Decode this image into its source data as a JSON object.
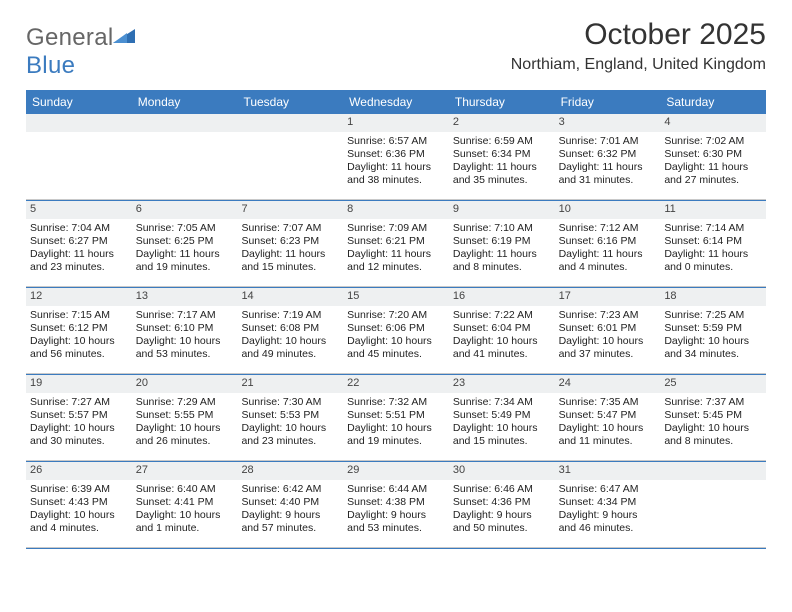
{
  "logo": {
    "word1": "General",
    "word2": "Blue"
  },
  "title": "October 2025",
  "location": "Northiam, England, United Kingdom",
  "colors": {
    "header_bg": "#3b7bbf",
    "header_text": "#ffffff",
    "daynum_bg": "#eef0f1",
    "week_divider": "#3b7bbf",
    "cell_divider": "#c9c9c9",
    "body_text": "#222222"
  },
  "dow": [
    "Sunday",
    "Monday",
    "Tuesday",
    "Wednesday",
    "Thursday",
    "Friday",
    "Saturday"
  ],
  "weeks": [
    [
      null,
      null,
      null,
      {
        "n": "1",
        "sr": "6:57 AM",
        "ss": "6:36 PM",
        "dl": "11 hours and 38 minutes."
      },
      {
        "n": "2",
        "sr": "6:59 AM",
        "ss": "6:34 PM",
        "dl": "11 hours and 35 minutes."
      },
      {
        "n": "3",
        "sr": "7:01 AM",
        "ss": "6:32 PM",
        "dl": "11 hours and 31 minutes."
      },
      {
        "n": "4",
        "sr": "7:02 AM",
        "ss": "6:30 PM",
        "dl": "11 hours and 27 minutes."
      }
    ],
    [
      {
        "n": "5",
        "sr": "7:04 AM",
        "ss": "6:27 PM",
        "dl": "11 hours and 23 minutes."
      },
      {
        "n": "6",
        "sr": "7:05 AM",
        "ss": "6:25 PM",
        "dl": "11 hours and 19 minutes."
      },
      {
        "n": "7",
        "sr": "7:07 AM",
        "ss": "6:23 PM",
        "dl": "11 hours and 15 minutes."
      },
      {
        "n": "8",
        "sr": "7:09 AM",
        "ss": "6:21 PM",
        "dl": "11 hours and 12 minutes."
      },
      {
        "n": "9",
        "sr": "7:10 AM",
        "ss": "6:19 PM",
        "dl": "11 hours and 8 minutes."
      },
      {
        "n": "10",
        "sr": "7:12 AM",
        "ss": "6:16 PM",
        "dl": "11 hours and 4 minutes."
      },
      {
        "n": "11",
        "sr": "7:14 AM",
        "ss": "6:14 PM",
        "dl": "11 hours and 0 minutes."
      }
    ],
    [
      {
        "n": "12",
        "sr": "7:15 AM",
        "ss": "6:12 PM",
        "dl": "10 hours and 56 minutes."
      },
      {
        "n": "13",
        "sr": "7:17 AM",
        "ss": "6:10 PM",
        "dl": "10 hours and 53 minutes."
      },
      {
        "n": "14",
        "sr": "7:19 AM",
        "ss": "6:08 PM",
        "dl": "10 hours and 49 minutes."
      },
      {
        "n": "15",
        "sr": "7:20 AM",
        "ss": "6:06 PM",
        "dl": "10 hours and 45 minutes."
      },
      {
        "n": "16",
        "sr": "7:22 AM",
        "ss": "6:04 PM",
        "dl": "10 hours and 41 minutes."
      },
      {
        "n": "17",
        "sr": "7:23 AM",
        "ss": "6:01 PM",
        "dl": "10 hours and 37 minutes."
      },
      {
        "n": "18",
        "sr": "7:25 AM",
        "ss": "5:59 PM",
        "dl": "10 hours and 34 minutes."
      }
    ],
    [
      {
        "n": "19",
        "sr": "7:27 AM",
        "ss": "5:57 PM",
        "dl": "10 hours and 30 minutes."
      },
      {
        "n": "20",
        "sr": "7:29 AM",
        "ss": "5:55 PM",
        "dl": "10 hours and 26 minutes."
      },
      {
        "n": "21",
        "sr": "7:30 AM",
        "ss": "5:53 PM",
        "dl": "10 hours and 23 minutes."
      },
      {
        "n": "22",
        "sr": "7:32 AM",
        "ss": "5:51 PM",
        "dl": "10 hours and 19 minutes."
      },
      {
        "n": "23",
        "sr": "7:34 AM",
        "ss": "5:49 PM",
        "dl": "10 hours and 15 minutes."
      },
      {
        "n": "24",
        "sr": "7:35 AM",
        "ss": "5:47 PM",
        "dl": "10 hours and 11 minutes."
      },
      {
        "n": "25",
        "sr": "7:37 AM",
        "ss": "5:45 PM",
        "dl": "10 hours and 8 minutes."
      }
    ],
    [
      {
        "n": "26",
        "sr": "6:39 AM",
        "ss": "4:43 PM",
        "dl": "10 hours and 4 minutes."
      },
      {
        "n": "27",
        "sr": "6:40 AM",
        "ss": "4:41 PM",
        "dl": "10 hours and 1 minute."
      },
      {
        "n": "28",
        "sr": "6:42 AM",
        "ss": "4:40 PM",
        "dl": "9 hours and 57 minutes."
      },
      {
        "n": "29",
        "sr": "6:44 AM",
        "ss": "4:38 PM",
        "dl": "9 hours and 53 minutes."
      },
      {
        "n": "30",
        "sr": "6:46 AM",
        "ss": "4:36 PM",
        "dl": "9 hours and 50 minutes."
      },
      {
        "n": "31",
        "sr": "6:47 AM",
        "ss": "4:34 PM",
        "dl": "9 hours and 46 minutes."
      },
      null
    ]
  ],
  "labels": {
    "sunrise": "Sunrise:",
    "sunset": "Sunset:",
    "daylight": "Daylight:"
  }
}
